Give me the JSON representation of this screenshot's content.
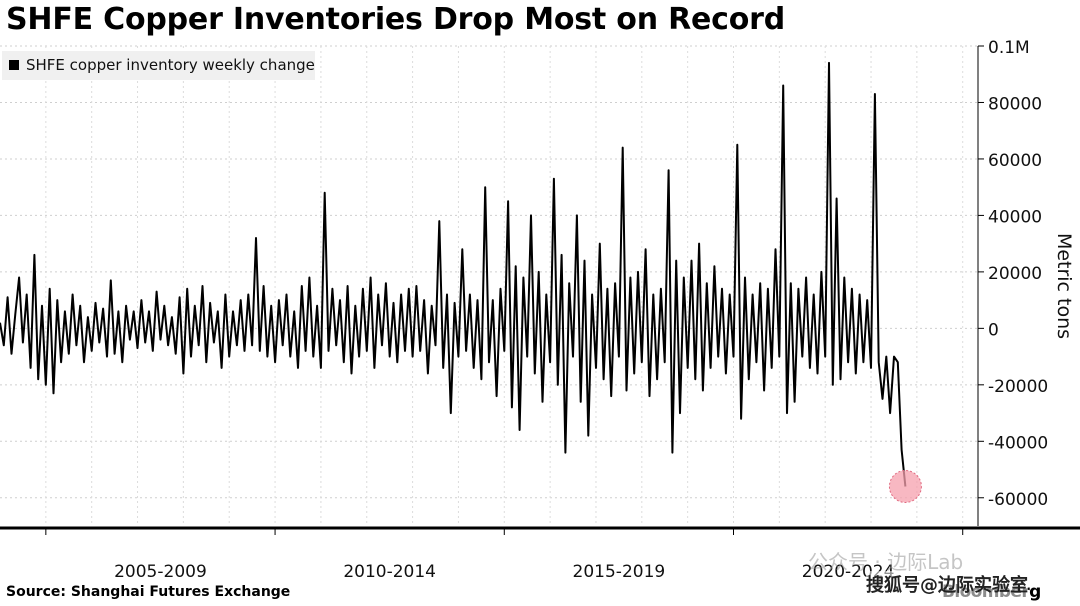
{
  "title": "SHFE Copper Inventories Drop Most on Record",
  "source": "Source: Shanghai Futures Exchange",
  "brand": "Bloomberg",
  "watermark": "公众号 · 边际Lab",
  "watermark2": "搜狐号@边际实验室",
  "chart_data": {
    "type": "line",
    "legend": {
      "label": "SHFE copper inventory weekly change",
      "placement": "top-left"
    },
    "ylabel": "Metric tons",
    "ylim": [
      -70000,
      100000
    ],
    "xlim": [
      "2004-01",
      "2025-05"
    ],
    "yticks": [
      {
        "value": 100000,
        "label": "0.1M"
      },
      {
        "value": 80000,
        "label": "80000"
      },
      {
        "value": 60000,
        "label": "60000"
      },
      {
        "value": 40000,
        "label": "40000"
      },
      {
        "value": 20000,
        "label": "20000"
      },
      {
        "value": 0,
        "label": "0"
      },
      {
        "value": -20000,
        "label": "-20000"
      },
      {
        "value": -40000,
        "label": "-40000"
      },
      {
        "value": -60000,
        "label": "-60000"
      }
    ],
    "xticks": [
      {
        "x": "2005-01",
        "label": "2005-2009"
      },
      {
        "x": "2010-01",
        "label": "2010-2014"
      },
      {
        "x": "2015-01",
        "label": "2015-2019"
      },
      {
        "x": "2020-01",
        "label": "2020-2024"
      }
    ],
    "grid": true,
    "series": [
      {
        "name": "SHFE copper inventory weekly change",
        "color": "#000000",
        "points": [
          [
            "2004-01",
            2000
          ],
          [
            "2004-02",
            -6000
          ],
          [
            "2004-03",
            11000
          ],
          [
            "2004-04",
            -9000
          ],
          [
            "2004-05",
            5000
          ],
          [
            "2004-06",
            18000
          ],
          [
            "2004-07",
            -5000
          ],
          [
            "2004-08",
            12000
          ],
          [
            "2004-09",
            -14000
          ],
          [
            "2004-10",
            26000
          ],
          [
            "2004-11",
            -18000
          ],
          [
            "2004-12",
            8000
          ],
          [
            "2005-01",
            -20000
          ],
          [
            "2005-02",
            14000
          ],
          [
            "2005-03",
            -23000
          ],
          [
            "2005-04",
            10000
          ],
          [
            "2005-05",
            -12000
          ],
          [
            "2005-06",
            6000
          ],
          [
            "2005-07",
            -9000
          ],
          [
            "2005-08",
            12000
          ],
          [
            "2005-09",
            -6000
          ],
          [
            "2005-10",
            8000
          ],
          [
            "2005-11",
            -12000
          ],
          [
            "2005-12",
            4000
          ],
          [
            "2006-01",
            -8000
          ],
          [
            "2006-02",
            9000
          ],
          [
            "2006-03",
            -5000
          ],
          [
            "2006-04",
            7000
          ],
          [
            "2006-05",
            -10000
          ],
          [
            "2006-06",
            17000
          ],
          [
            "2006-07",
            -9000
          ],
          [
            "2006-08",
            6000
          ],
          [
            "2006-09",
            -12000
          ],
          [
            "2006-10",
            8000
          ],
          [
            "2006-11",
            -4000
          ],
          [
            "2006-12",
            6000
          ],
          [
            "2007-01",
            -7000
          ],
          [
            "2007-02",
            10000
          ],
          [
            "2007-03",
            -5000
          ],
          [
            "2007-04",
            6000
          ],
          [
            "2007-05",
            -8000
          ],
          [
            "2007-06",
            13000
          ],
          [
            "2007-07",
            -4000
          ],
          [
            "2007-08",
            8000
          ],
          [
            "2007-09",
            -6000
          ],
          [
            "2007-10",
            4000
          ],
          [
            "2007-11",
            -9000
          ],
          [
            "2007-12",
            11000
          ],
          [
            "2008-01",
            -16000
          ],
          [
            "2008-02",
            14000
          ],
          [
            "2008-03",
            -10000
          ],
          [
            "2008-04",
            8000
          ],
          [
            "2008-05",
            -6000
          ],
          [
            "2008-06",
            15000
          ],
          [
            "2008-07",
            -12000
          ],
          [
            "2008-08",
            9000
          ],
          [
            "2008-09",
            -5000
          ],
          [
            "2008-10",
            6000
          ],
          [
            "2008-11",
            -14000
          ],
          [
            "2008-12",
            12000
          ],
          [
            "2009-01",
            -10000
          ],
          [
            "2009-02",
            6000
          ],
          [
            "2009-03",
            -6000
          ],
          [
            "2009-04",
            10000
          ],
          [
            "2009-05",
            -8000
          ],
          [
            "2009-06",
            12000
          ],
          [
            "2009-07",
            -6000
          ],
          [
            "2009-08",
            32000
          ],
          [
            "2009-09",
            -8000
          ],
          [
            "2009-10",
            15000
          ],
          [
            "2009-11",
            -10000
          ],
          [
            "2009-12",
            8000
          ],
          [
            "2010-01",
            -12000
          ],
          [
            "2010-02",
            10000
          ],
          [
            "2010-03",
            -6000
          ],
          [
            "2010-04",
            12000
          ],
          [
            "2010-05",
            -10000
          ],
          [
            "2010-06",
            6000
          ],
          [
            "2010-07",
            -14000
          ],
          [
            "2010-08",
            15000
          ],
          [
            "2010-09",
            -8000
          ],
          [
            "2010-10",
            18000
          ],
          [
            "2010-11",
            -10000
          ],
          [
            "2010-12",
            8000
          ],
          [
            "2011-01",
            -14000
          ],
          [
            "2011-02",
            48000
          ],
          [
            "2011-03",
            -8000
          ],
          [
            "2011-04",
            14000
          ],
          [
            "2011-05",
            -6000
          ],
          [
            "2011-06",
            10000
          ],
          [
            "2011-07",
            -12000
          ],
          [
            "2011-08",
            15000
          ],
          [
            "2011-09",
            -16000
          ],
          [
            "2011-10",
            8000
          ],
          [
            "2011-11",
            -10000
          ],
          [
            "2011-12",
            14000
          ],
          [
            "2012-01",
            -8000
          ],
          [
            "2012-02",
            18000
          ],
          [
            "2012-03",
            -14000
          ],
          [
            "2012-04",
            12000
          ],
          [
            "2012-05",
            -6000
          ],
          [
            "2012-06",
            16000
          ],
          [
            "2012-07",
            -10000
          ],
          [
            "2012-08",
            9000
          ],
          [
            "2012-09",
            -12000
          ],
          [
            "2012-10",
            12000
          ],
          [
            "2012-11",
            -8000
          ],
          [
            "2012-12",
            14000
          ],
          [
            "2013-01",
            -10000
          ],
          [
            "2013-02",
            15000
          ],
          [
            "2013-03",
            -8000
          ],
          [
            "2013-04",
            10000
          ],
          [
            "2013-05",
            -16000
          ],
          [
            "2013-06",
            8000
          ],
          [
            "2013-07",
            -6000
          ],
          [
            "2013-08",
            38000
          ],
          [
            "2013-09",
            -14000
          ],
          [
            "2013-10",
            12000
          ],
          [
            "2013-11",
            -30000
          ],
          [
            "2013-12",
            9000
          ],
          [
            "2014-01",
            -10000
          ],
          [
            "2014-02",
            28000
          ],
          [
            "2014-03",
            -8000
          ],
          [
            "2014-04",
            12000
          ],
          [
            "2014-05",
            -14000
          ],
          [
            "2014-06",
            10000
          ],
          [
            "2014-07",
            -18000
          ],
          [
            "2014-08",
            50000
          ],
          [
            "2014-09",
            -12000
          ],
          [
            "2014-10",
            10000
          ],
          [
            "2014-11",
            -24000
          ],
          [
            "2014-12",
            14000
          ],
          [
            "2015-01",
            -8000
          ],
          [
            "2015-02",
            45000
          ],
          [
            "2015-03",
            -28000
          ],
          [
            "2015-04",
            22000
          ],
          [
            "2015-05",
            -36000
          ],
          [
            "2015-06",
            18000
          ],
          [
            "2015-07",
            -10000
          ],
          [
            "2015-08",
            40000
          ],
          [
            "2015-09",
            -16000
          ],
          [
            "2015-10",
            20000
          ],
          [
            "2015-11",
            -26000
          ],
          [
            "2015-12",
            12000
          ],
          [
            "2016-01",
            -12000
          ],
          [
            "2016-02",
            53000
          ],
          [
            "2016-03",
            -20000
          ],
          [
            "2016-04",
            26000
          ],
          [
            "2016-05",
            -44000
          ],
          [
            "2016-06",
            16000
          ],
          [
            "2016-07",
            -10000
          ],
          [
            "2016-08",
            40000
          ],
          [
            "2016-09",
            -26000
          ],
          [
            "2016-10",
            24000
          ],
          [
            "2016-11",
            -38000
          ],
          [
            "2016-12",
            12000
          ],
          [
            "2017-01",
            -14000
          ],
          [
            "2017-02",
            30000
          ],
          [
            "2017-03",
            -18000
          ],
          [
            "2017-04",
            14000
          ],
          [
            "2017-05",
            -24000
          ],
          [
            "2017-06",
            16000
          ],
          [
            "2017-07",
            -10000
          ],
          [
            "2017-08",
            64000
          ],
          [
            "2017-09",
            -22000
          ],
          [
            "2017-10",
            18000
          ],
          [
            "2017-11",
            -16000
          ],
          [
            "2017-12",
            20000
          ],
          [
            "2018-01",
            -12000
          ],
          [
            "2018-02",
            28000
          ],
          [
            "2018-03",
            -24000
          ],
          [
            "2018-04",
            12000
          ],
          [
            "2018-05",
            -18000
          ],
          [
            "2018-06",
            14000
          ],
          [
            "2018-07",
            -12000
          ],
          [
            "2018-08",
            56000
          ],
          [
            "2018-09",
            -44000
          ],
          [
            "2018-10",
            24000
          ],
          [
            "2018-11",
            -30000
          ],
          [
            "2018-12",
            18000
          ],
          [
            "2019-01",
            -14000
          ],
          [
            "2019-02",
            24000
          ],
          [
            "2019-03",
            -18000
          ],
          [
            "2019-04",
            30000
          ],
          [
            "2019-05",
            -22000
          ],
          [
            "2019-06",
            16000
          ],
          [
            "2019-07",
            -14000
          ],
          [
            "2019-08",
            22000
          ],
          [
            "2019-09",
            -10000
          ],
          [
            "2019-10",
            14000
          ],
          [
            "2019-11",
            -16000
          ],
          [
            "2019-12",
            12000
          ],
          [
            "2020-01",
            -10000
          ],
          [
            "2020-02",
            65000
          ],
          [
            "2020-03",
            -32000
          ],
          [
            "2020-04",
            18000
          ],
          [
            "2020-05",
            -18000
          ],
          [
            "2020-06",
            12000
          ],
          [
            "2020-07",
            -12000
          ],
          [
            "2020-08",
            16000
          ],
          [
            "2020-09",
            -22000
          ],
          [
            "2020-10",
            14000
          ],
          [
            "2020-11",
            -14000
          ],
          [
            "2020-12",
            28000
          ],
          [
            "2021-01",
            -10000
          ],
          [
            "2021-02",
            86000
          ],
          [
            "2021-03",
            -30000
          ],
          [
            "2021-04",
            16000
          ],
          [
            "2021-05",
            -26000
          ],
          [
            "2021-06",
            14000
          ],
          [
            "2021-07",
            -10000
          ],
          [
            "2021-08",
            18000
          ],
          [
            "2021-09",
            -14000
          ],
          [
            "2021-10",
            12000
          ],
          [
            "2021-11",
            -16000
          ],
          [
            "2021-12",
            20000
          ],
          [
            "2022-01",
            -10000
          ],
          [
            "2022-02",
            94000
          ],
          [
            "2022-03",
            -20000
          ],
          [
            "2022-04",
            46000
          ],
          [
            "2022-05",
            -18000
          ],
          [
            "2022-06",
            18000
          ],
          [
            "2022-07",
            -12000
          ],
          [
            "2022-08",
            14000
          ],
          [
            "2022-09",
            -16000
          ],
          [
            "2022-10",
            12000
          ],
          [
            "2022-11",
            -12000
          ],
          [
            "2022-12",
            10000
          ],
          [
            "2023-01",
            -14000
          ],
          [
            "2023-02",
            83000
          ],
          [
            "2023-03",
            -12000
          ],
          [
            "2023-04",
            -25000
          ],
          [
            "2023-05",
            -10000
          ],
          [
            "2023-06",
            -30000
          ],
          [
            "2023-07",
            -10000
          ],
          [
            "2023-08",
            -12000
          ],
          [
            "2023-09",
            -43000
          ],
          [
            "2023-10",
            -56000
          ]
        ]
      }
    ],
    "highlight": {
      "x": "2023-10",
      "y": -56000,
      "color": "#f5a0ae"
    }
  }
}
